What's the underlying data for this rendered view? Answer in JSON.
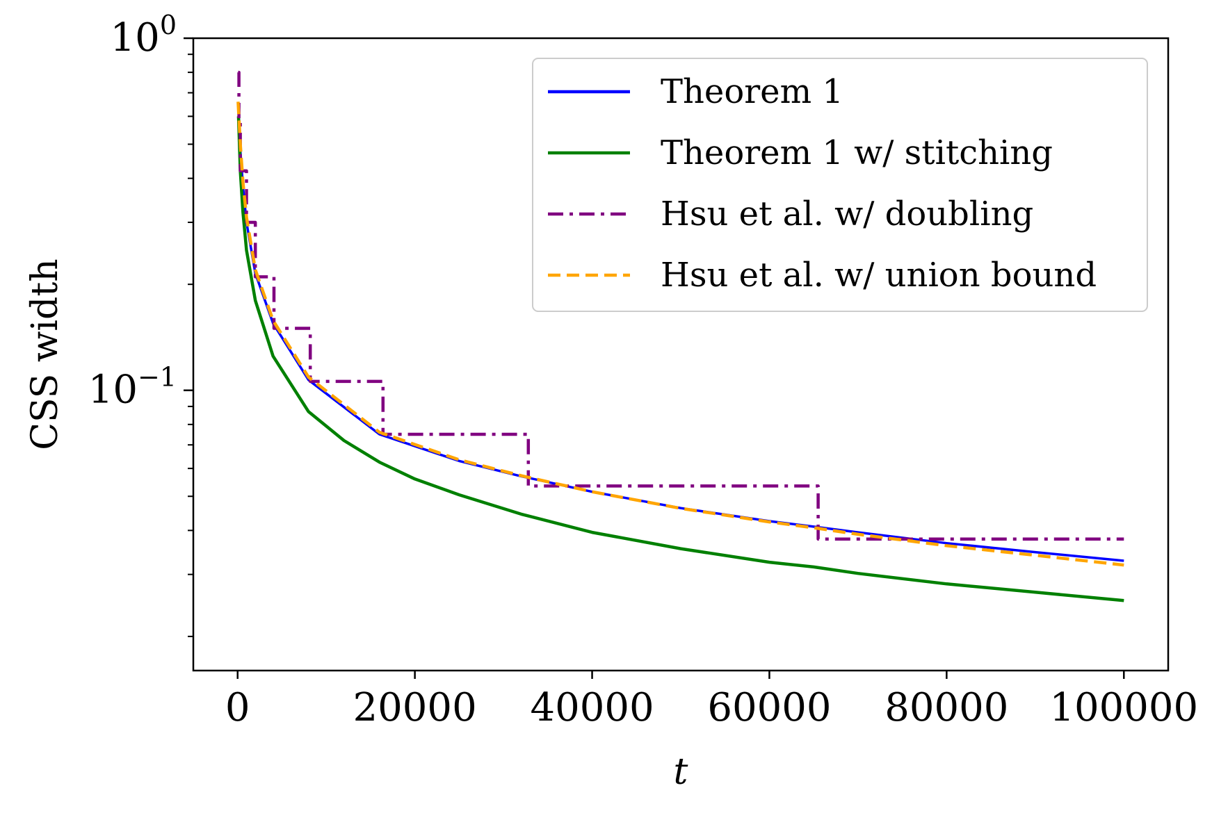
{
  "chart_data": {
    "type": "line",
    "title": "",
    "xlabel": "t",
    "ylabel": "CSS width",
    "xlim": [
      -5000,
      105000
    ],
    "ylim": [
      0.016,
      1.0
    ],
    "yscale": "log",
    "grid": false,
    "legend_position": "top-right",
    "x_ticks": [
      0,
      20000,
      40000,
      60000,
      80000,
      100000
    ],
    "x_tick_labels": [
      "0",
      "20000",
      "40000",
      "60000",
      "80000",
      "100000"
    ],
    "y_major_ticks": [
      {
        "value": 1.0,
        "base": "10",
        "exp": "0"
      },
      {
        "value": 0.1,
        "base": "10",
        "exp": "−1"
      }
    ],
    "y_minor_ticks": [
      0.02,
      0.03,
      0.04,
      0.05,
      0.06,
      0.07,
      0.08,
      0.09,
      0.2,
      0.3,
      0.4,
      0.5,
      0.6,
      0.7,
      0.8,
      0.9
    ],
    "series": [
      {
        "name": "Theorem 1",
        "color": "#0000ff",
        "style": "solid",
        "points": [
          [
            100,
            0.62
          ],
          [
            300,
            0.48
          ],
          [
            600,
            0.38
          ],
          [
            1000,
            0.3
          ],
          [
            2000,
            0.215
          ],
          [
            4000,
            0.155
          ],
          [
            8000,
            0.107
          ],
          [
            16000,
            0.075
          ],
          [
            25000,
            0.063
          ],
          [
            32000,
            0.057
          ],
          [
            40000,
            0.0515
          ],
          [
            50000,
            0.0463
          ],
          [
            60000,
            0.0425
          ],
          [
            65000,
            0.041
          ],
          [
            70000,
            0.0395
          ],
          [
            80000,
            0.0368
          ],
          [
            90000,
            0.0347
          ],
          [
            100000,
            0.0328
          ]
        ]
      },
      {
        "name": "Theorem 1 w/ stitching",
        "color": "#008000",
        "style": "solid",
        "points": [
          [
            100,
            0.6
          ],
          [
            300,
            0.42
          ],
          [
            600,
            0.32
          ],
          [
            1000,
            0.25
          ],
          [
            2000,
            0.18
          ],
          [
            4000,
            0.125
          ],
          [
            8000,
            0.087
          ],
          [
            12000,
            0.072
          ],
          [
            16000,
            0.0625
          ],
          [
            20000,
            0.056
          ],
          [
            25000,
            0.0505
          ],
          [
            32000,
            0.0445
          ],
          [
            40000,
            0.0395
          ],
          [
            50000,
            0.0355
          ],
          [
            60000,
            0.0325
          ],
          [
            65000,
            0.0315
          ],
          [
            70000,
            0.0302
          ],
          [
            80000,
            0.0282
          ],
          [
            90000,
            0.0267
          ],
          [
            100000,
            0.0253
          ]
        ]
      },
      {
        "name": "Hsu et al. w/ doubling",
        "color": "#800080",
        "style": "dashdot",
        "points": [
          [
            60,
            0.8
          ],
          [
            150,
            0.8
          ],
          [
            150,
            0.58
          ],
          [
            300,
            0.58
          ],
          [
            300,
            0.42
          ],
          [
            1000,
            0.42
          ],
          [
            1000,
            0.3
          ],
          [
            2000,
            0.3
          ],
          [
            2000,
            0.21
          ],
          [
            4100,
            0.21
          ],
          [
            4100,
            0.15
          ],
          [
            8200,
            0.15
          ],
          [
            8200,
            0.106
          ],
          [
            16400,
            0.106
          ],
          [
            16400,
            0.075
          ],
          [
            32800,
            0.075
          ],
          [
            32800,
            0.0535
          ],
          [
            65500,
            0.0535
          ],
          [
            65500,
            0.0378
          ],
          [
            100000,
            0.0378
          ]
        ]
      },
      {
        "name": "Hsu et al. w/ union bound",
        "color": "#ffa500",
        "style": "dashed",
        "points": [
          [
            50,
            0.66
          ],
          [
            300,
            0.5
          ],
          [
            600,
            0.39
          ],
          [
            1000,
            0.31
          ],
          [
            2000,
            0.22
          ],
          [
            4000,
            0.158
          ],
          [
            8000,
            0.109
          ],
          [
            16000,
            0.076
          ],
          [
            25000,
            0.0635
          ],
          [
            32000,
            0.0572
          ],
          [
            40000,
            0.0515
          ],
          [
            50000,
            0.0462
          ],
          [
            60000,
            0.0423
          ],
          [
            65000,
            0.0407
          ],
          [
            70000,
            0.039
          ],
          [
            80000,
            0.0362
          ],
          [
            90000,
            0.034
          ],
          [
            100000,
            0.0319
          ]
        ]
      }
    ]
  }
}
